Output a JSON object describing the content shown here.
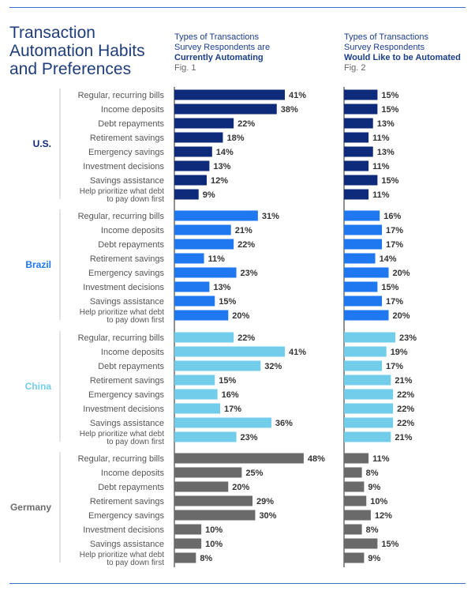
{
  "title_lines": [
    "Transaction",
    "Automation Habits",
    "and Preferences"
  ],
  "fig1": {
    "lines": [
      "Types of Transactions",
      "Survey Respondents are"
    ],
    "bold_line": "Currently Automating",
    "fig_label": "Fig. 1"
  },
  "fig2": {
    "lines": [
      "Types of Transactions",
      "Survey Respondents"
    ],
    "bold_line": "Would Like to be Automated",
    "fig_label": "Fig. 2"
  },
  "colors": {
    "rule": "#3f6fd1",
    "text": "#555555",
    "U.S.": "#0e2a7a",
    "Brazil": "#1f78f0",
    "China": "#72cdea",
    "Germany": "#6a6a6a"
  },
  "chart_data": [
    {
      "type": "bar",
      "orientation": "horizontal",
      "title": "Types of Transactions Survey Respondents are Currently Automating",
      "categories": [
        "Regular, recurring bills",
        "Income deposits",
        "Debt repayments",
        "Retirement savings",
        "Emergency savings",
        "Investment decisions",
        "Savings assistance",
        "Help prioritize what debt to pay down first"
      ],
      "category_lines": [
        [
          "Regular, recurring bills"
        ],
        [
          "Income deposits"
        ],
        [
          "Debt repayments"
        ],
        [
          "Retirement savings"
        ],
        [
          "Emergency savings"
        ],
        [
          "Investment decisions"
        ],
        [
          "Savings assistance"
        ],
        [
          "Help prioritize what debt",
          "to pay down first"
        ]
      ],
      "series": [
        {
          "name": "U.S.",
          "values": [
            41,
            38,
            22,
            18,
            14,
            13,
            12,
            9
          ],
          "labels": [
            "41%",
            "38%",
            "22%",
            "18%",
            "14%",
            "13%",
            "12%",
            "9%"
          ]
        },
        {
          "name": "Brazil",
          "values": [
            31,
            21,
            22,
            11,
            23,
            13,
            15,
            20
          ],
          "labels": [
            "31%",
            "21%",
            "22%",
            "11%",
            "23%",
            "13%",
            "15%",
            "20%"
          ]
        },
        {
          "name": "China",
          "values": [
            22,
            41,
            32,
            15,
            16,
            17,
            36,
            23
          ],
          "labels": [
            "22%",
            "41%",
            "32%",
            "15%",
            "16%",
            "17%",
            "36%",
            "23%"
          ]
        },
        {
          "name": "Germany",
          "values": [
            48,
            25,
            20,
            29,
            30,
            10,
            10,
            8
          ],
          "labels": [
            "48%",
            "25%",
            "20%",
            "29%",
            "30%",
            "10%",
            "10%",
            "8%"
          ]
        }
      ],
      "xlim": [
        0,
        48
      ],
      "grid": false,
      "legend": "none"
    },
    {
      "type": "bar",
      "orientation": "horizontal",
      "title": "Types of Transactions Survey Respondents Would Like to be Automated",
      "categories": [
        "Regular, recurring bills",
        "Income deposits",
        "Debt repayments",
        "Retirement savings",
        "Emergency savings",
        "Investment decisions",
        "Savings assistance",
        "Help prioritize what debt to pay down first"
      ],
      "series": [
        {
          "name": "U.S.",
          "values": [
            15,
            15,
            13,
            11,
            13,
            11,
            15,
            11
          ],
          "labels": [
            "15%",
            "15%",
            "13%",
            "11%",
            "13%",
            "11%",
            "15%",
            "11%"
          ]
        },
        {
          "name": "Brazil",
          "values": [
            16,
            17,
            17,
            14,
            20,
            15,
            17,
            20
          ],
          "labels": [
            "16%",
            "17%",
            "17%",
            "14%",
            "20%",
            "15%",
            "17%",
            "20%"
          ]
        },
        {
          "name": "China",
          "values": [
            23,
            19,
            17,
            21,
            22,
            22,
            22,
            21
          ],
          "labels": [
            "23%",
            "19%",
            "17%",
            "21%",
            "22%",
            "22%",
            "22%",
            "21%"
          ]
        },
        {
          "name": "Germany",
          "values": [
            11,
            8,
            9,
            10,
            12,
            8,
            15,
            9
          ],
          "labels": [
            "11%",
            "8%",
            "9%",
            "10%",
            "12%",
            "8%",
            "15%",
            "9%"
          ]
        }
      ],
      "xlim": [
        0,
        23
      ],
      "grid": false,
      "legend": "none"
    }
  ]
}
